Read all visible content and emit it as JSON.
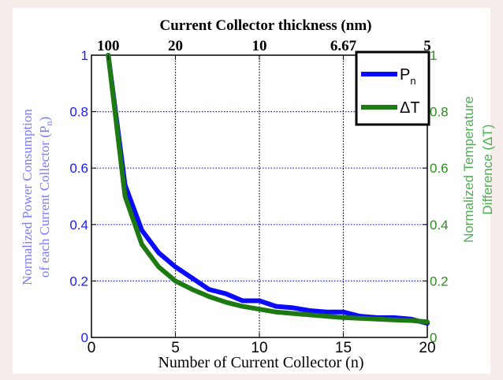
{
  "chart_data": {
    "type": "line",
    "title": "Current Collector thickness (nm)",
    "xlabel": "Number of Current Collector (n)",
    "ylabel_left": "Normalized Power Consumption of each Current Collector (P",
    "ylabel_left_lines": [
      "Normalized Power Consumption",
      "of each Current Collector (P"
    ],
    "ylabel_left_sub": "n",
    "ylabel_right_lines": [
      "Normalized Temperature",
      "Difference (ΔT)"
    ],
    "xlim": [
      0,
      20
    ],
    "ylim": [
      0,
      1
    ],
    "x_ticks": [
      0,
      5,
      10,
      15,
      20
    ],
    "y_ticks": [
      0,
      0.2,
      0.4,
      0.6,
      0.8,
      1
    ],
    "y_tick_labels": [
      "0",
      "0.2",
      "0.4",
      "0.6",
      "0.8",
      "1"
    ],
    "top_ticks": [
      {
        "at": 1,
        "label": "100"
      },
      {
        "at": 5,
        "label": "20"
      },
      {
        "at": 10,
        "label": "10"
      },
      {
        "at": 15,
        "label": "6.67"
      },
      {
        "at": 20,
        "label": "5"
      }
    ],
    "grid": true,
    "legend_position": "top-right",
    "series": [
      {
        "name": "P",
        "name_sub": "n",
        "color": "#0a0aff",
        "x": [
          1,
          2,
          3,
          4,
          5,
          6,
          7,
          8,
          9,
          10,
          11,
          12,
          13,
          14,
          15,
          16,
          17,
          18,
          19,
          20
        ],
        "y": [
          1.0,
          0.54,
          0.38,
          0.3,
          0.25,
          0.21,
          0.17,
          0.155,
          0.13,
          0.13,
          0.11,
          0.105,
          0.095,
          0.09,
          0.09,
          0.075,
          0.07,
          0.07,
          0.065,
          0.05
        ]
      },
      {
        "name": "ΔT",
        "color": "#1d7a12",
        "x": [
          1,
          2,
          3,
          4,
          5,
          6,
          7,
          8,
          9,
          10,
          11,
          12,
          13,
          14,
          15,
          16,
          17,
          18,
          19,
          20
        ],
        "y": [
          1.0,
          0.5,
          0.33,
          0.25,
          0.2,
          0.17,
          0.145,
          0.125,
          0.11,
          0.1,
          0.09,
          0.085,
          0.08,
          0.075,
          0.07,
          0.068,
          0.065,
          0.062,
          0.06,
          0.055
        ]
      }
    ]
  }
}
